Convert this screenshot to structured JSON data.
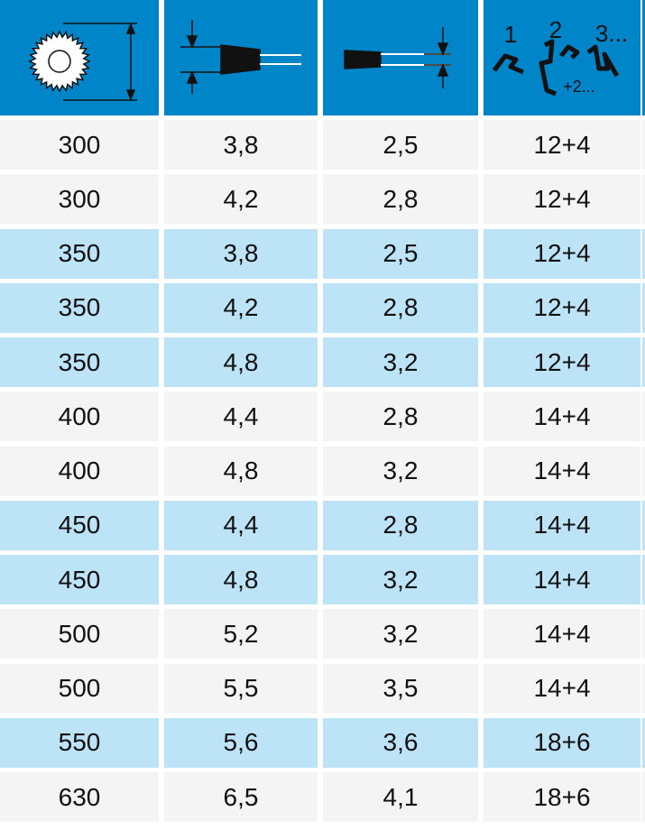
{
  "header": {
    "tooth_labels": [
      "1",
      "2",
      "3...",
      "+2..."
    ]
  },
  "table": {
    "rows": [
      [
        "300",
        "3,8",
        "2,5",
        "12+4"
      ],
      [
        "300",
        "4,2",
        "2,8",
        "12+4"
      ],
      [
        "350",
        "3,8",
        "2,5",
        "12+4"
      ],
      [
        "350",
        "4,2",
        "2,8",
        "12+4"
      ],
      [
        "350",
        "4,8",
        "3,2",
        "12+4"
      ],
      [
        "400",
        "4,4",
        "2,8",
        "14+4"
      ],
      [
        "400",
        "4,8",
        "3,2",
        "14+4"
      ],
      [
        "450",
        "4,4",
        "2,8",
        "14+4"
      ],
      [
        "450",
        "4,8",
        "3,2",
        "14+4"
      ],
      [
        "500",
        "5,2",
        "3,2",
        "14+4"
      ],
      [
        "500",
        "5,5",
        "3,5",
        "14+4"
      ],
      [
        "550",
        "5,6",
        "3,6",
        "18+6"
      ],
      [
        "630",
        "6,5",
        "4,1",
        "18+6"
      ]
    ]
  }
}
